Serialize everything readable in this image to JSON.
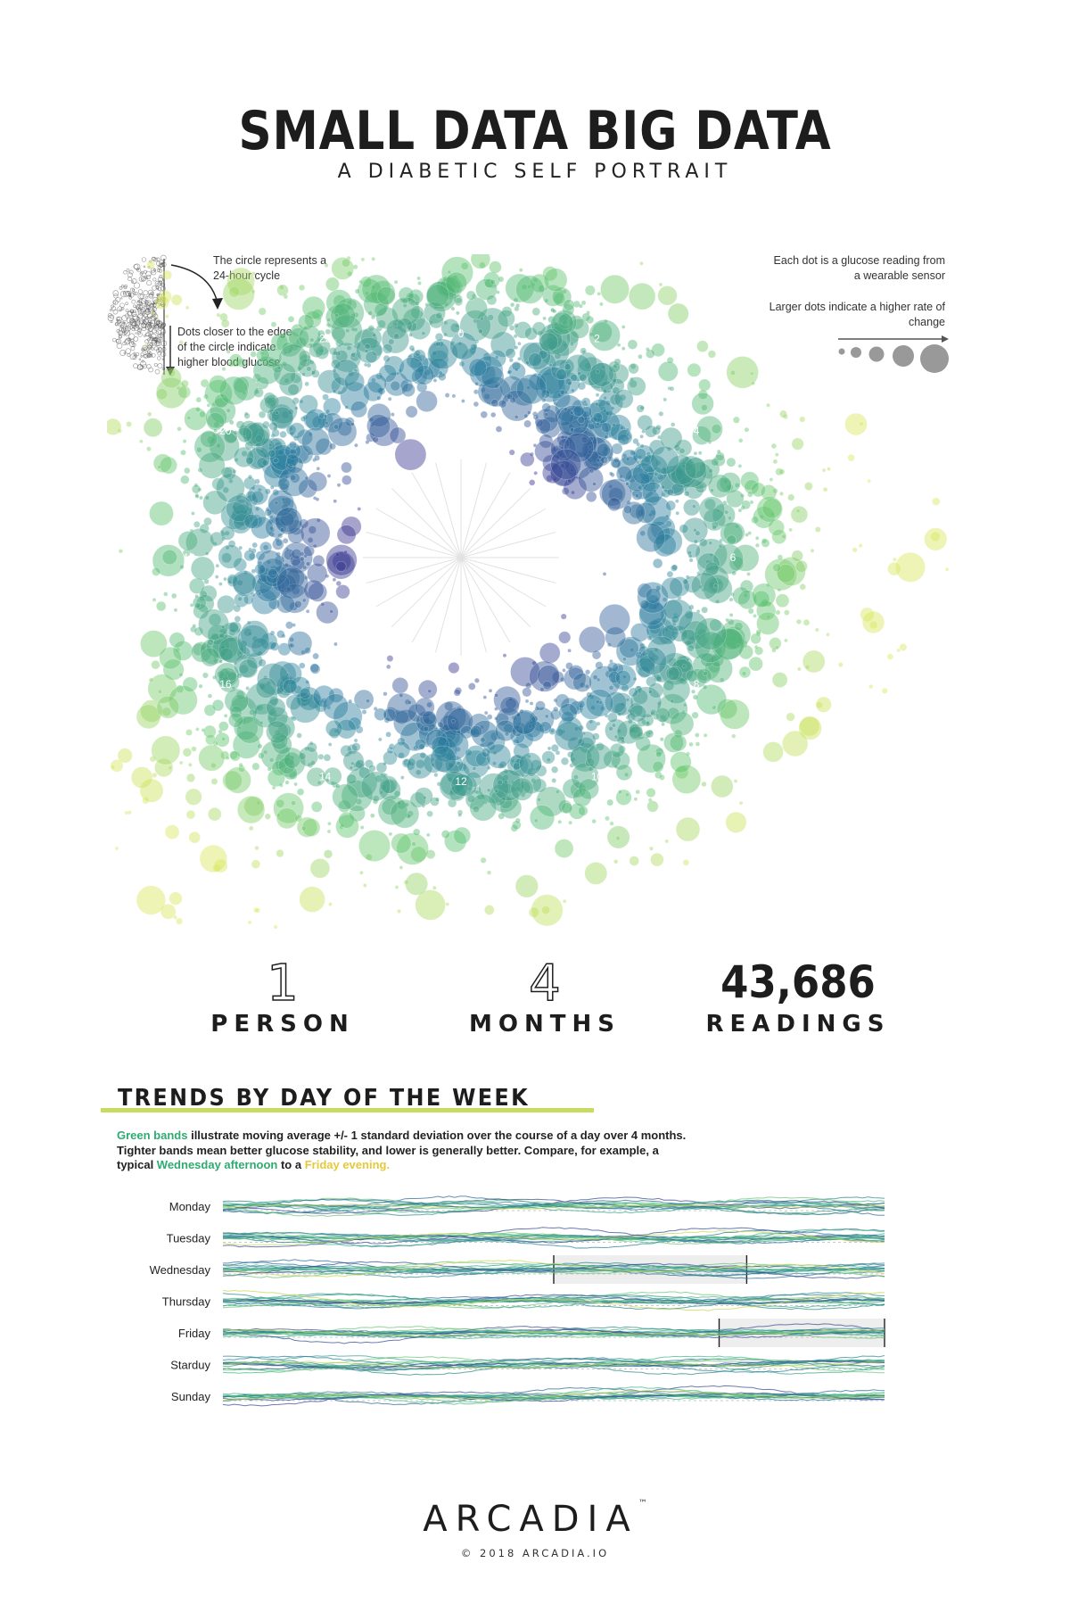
{
  "header": {
    "title": "SMALL DATA BIG DATA",
    "subtitle": "A DIABETIC SELF PORTRAIT"
  },
  "annotations": {
    "circle_cycle": "The circle represents a 24-hour cycle",
    "edge_glucose": "Dots closer to the edge of the circle indicate higher blood glucose",
    "dot_reading": "Each dot is a glucose reading from a wearable sensor",
    "larger_dots": "Larger dots indicate a higher rate of change"
  },
  "stats": [
    {
      "value": "1",
      "label": "PERSON"
    },
    {
      "value": "4",
      "label": "MONTHS"
    },
    {
      "value": "43,686",
      "label": "READINGS"
    }
  ],
  "trends": {
    "title": "TRENDS BY DAY OF THE WEEK",
    "desc_green": "Green bands",
    "desc_part1": " illustrate moving average +/- 1 standard deviation over the course of a day over 4 months. Tighter bands mean better glucose stability, and lower is generally better. Compare, for example, a typical ",
    "desc_wed": "Wednesday afternoon",
    "desc_part2": " to a ",
    "desc_fri": "Friday evening."
  },
  "footer": {
    "logo": "ARCADIA",
    "trademark": "™",
    "copyright": "© 2018 ARCADIA.IO"
  },
  "colors": {
    "inner_low": "#3b2b8f",
    "mid": "#2a7f9e",
    "outer_high": "#59c26d",
    "extreme": "#d8e65a",
    "trend_bar": "#c5dc5f",
    "green_text": "#2eab6f",
    "yellow_text": "#e6c93a"
  },
  "chart_data": [
    {
      "type": "scatter",
      "coordinate_system": "polar",
      "angle_axis_label_values": [
        0,
        2,
        4,
        6,
        8,
        10,
        12,
        14,
        16,
        18,
        20,
        22
      ],
      "angle_axis_range": [
        0,
        24
      ],
      "reading_count": 43686,
      "size_encoding": "rate of change",
      "radius_encoding": "blood glucose",
      "size_legend_steps": 5
    },
    {
      "type": "line",
      "categories": [
        "Monday",
        "Tuesday",
        "Wednesday",
        "Thursday",
        "Friday",
        "Starduy",
        "Sunday"
      ],
      "x_range": [
        0,
        24
      ],
      "highlights": [
        {
          "day": "Wednesday",
          "from": 12,
          "to": 19
        },
        {
          "day": "Friday",
          "from": 18,
          "to": 24
        }
      ]
    }
  ]
}
